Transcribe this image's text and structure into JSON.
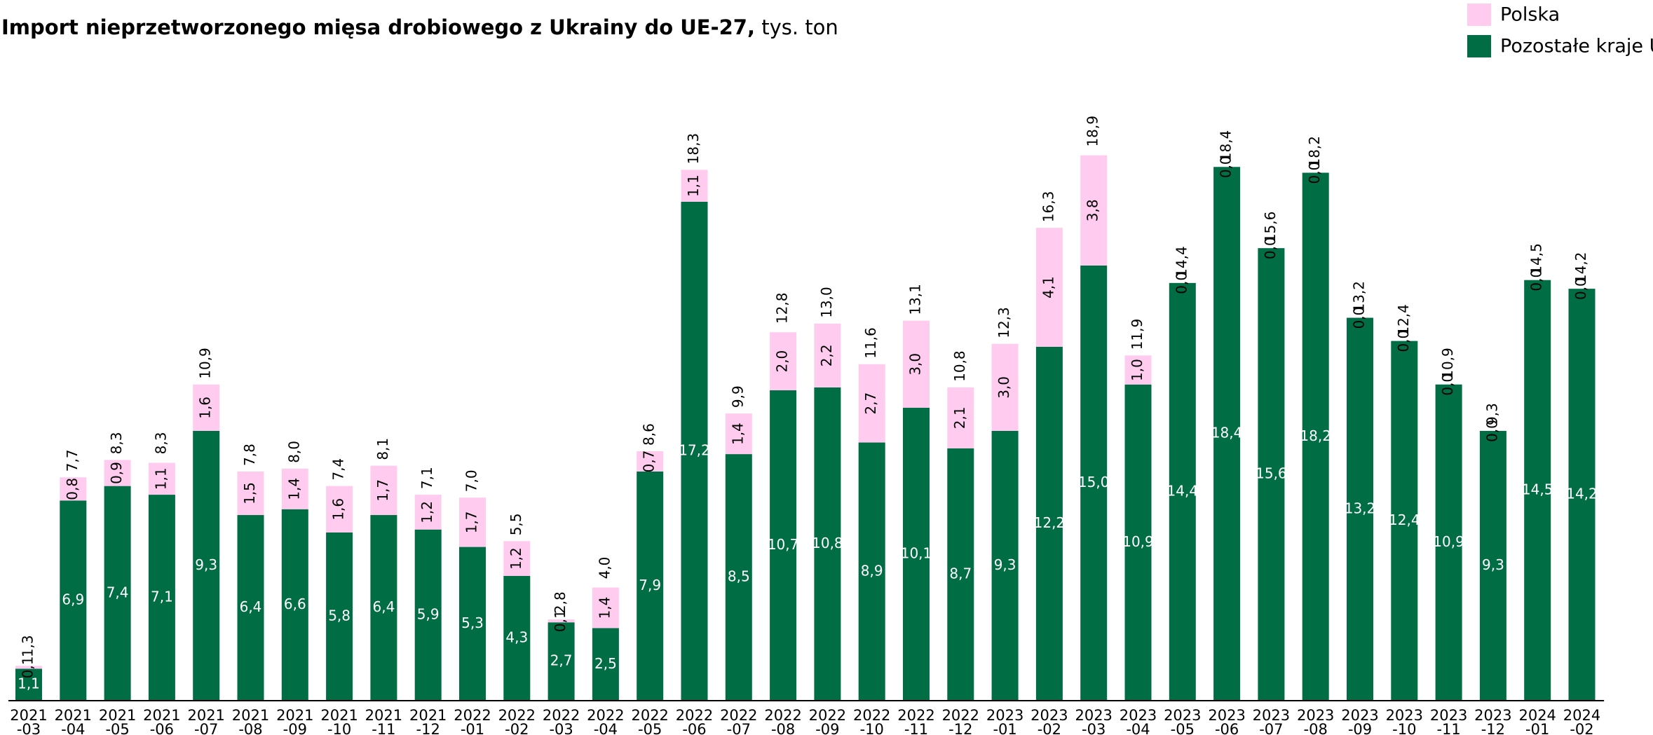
{
  "chart_data": {
    "type": "stacked_bar",
    "title": "Import nieprzetworzonego mięsa drobiowego z Ukrainy do UE-27,",
    "subtitle": " tys. ton",
    "legend": "top-right",
    "ylim": [
      0,
      20
    ],
    "categories": [
      [
        "2021",
        "-03"
      ],
      [
        "2021",
        "-04"
      ],
      [
        "2021",
        "-05"
      ],
      [
        "2021",
        "-06"
      ],
      [
        "2021",
        "-07"
      ],
      [
        "2021",
        "-08"
      ],
      [
        "2021",
        "-09"
      ],
      [
        "2021",
        "-10"
      ],
      [
        "2021",
        "-11"
      ],
      [
        "2021",
        "-12"
      ],
      [
        "2022",
        "-01"
      ],
      [
        "2022",
        "-02"
      ],
      [
        "2022",
        "-03"
      ],
      [
        "2022",
        "-04"
      ],
      [
        "2022",
        "-05"
      ],
      [
        "2022",
        "-06"
      ],
      [
        "2022",
        "-07"
      ],
      [
        "2022",
        "-08"
      ],
      [
        "2022",
        "-09"
      ],
      [
        "2022",
        "-10"
      ],
      [
        "2022",
        "-11"
      ],
      [
        "2022",
        "-12"
      ],
      [
        "2023",
        "-01"
      ],
      [
        "2023",
        "-02"
      ],
      [
        "2023",
        "-03"
      ],
      [
        "2023",
        "-04"
      ],
      [
        "2023",
        "-05"
      ],
      [
        "2023",
        "-06"
      ],
      [
        "2023",
        "-07"
      ],
      [
        "2023",
        "-08"
      ],
      [
        "2023",
        "-09"
      ],
      [
        "2023",
        "-10"
      ],
      [
        "2023",
        "-11"
      ],
      [
        "2023",
        "-12"
      ],
      [
        "2024",
        "-01"
      ],
      [
        "2024",
        "-02"
      ]
    ],
    "series": [
      {
        "name": "Pozostałe kraje UE",
        "color": "#006d44",
        "values": [
          1.1,
          6.9,
          7.4,
          7.1,
          9.3,
          6.4,
          6.6,
          5.8,
          6.4,
          5.9,
          5.3,
          4.3,
          2.7,
          2.5,
          7.9,
          17.2,
          8.5,
          10.7,
          10.8,
          8.9,
          10.1,
          8.7,
          9.3,
          12.2,
          15.0,
          10.9,
          14.4,
          18.4,
          15.6,
          18.2,
          13.2,
          12.4,
          10.9,
          9.3,
          14.5,
          14.2
        ],
        "value_labels": [
          "1,1",
          "6,9",
          "7,4",
          "7,1",
          "9,3",
          "6,4",
          "6,6",
          "5,8",
          "6,4",
          "5,9",
          "5,3",
          "4,3",
          "2,7",
          "2,5",
          "7,9",
          "17,2",
          "8,5",
          "10,7",
          "10,8",
          "8,9",
          "10,1",
          "8,7",
          "9,3",
          "12,2",
          "15,0",
          "10,9",
          "14,4",
          "18,4",
          "15,6",
          "18,2",
          "13,2",
          "12,4",
          "10,9",
          "9,3",
          "14,5",
          "14,2"
        ]
      },
      {
        "name": "Polska",
        "color": "#ffccf0",
        "values": [
          0.1,
          0.8,
          0.9,
          1.1,
          1.6,
          1.5,
          1.4,
          1.6,
          1.7,
          1.2,
          1.7,
          1.2,
          0.1,
          1.4,
          0.7,
          1.1,
          1.4,
          2.0,
          2.2,
          2.7,
          3.0,
          2.1,
          3.0,
          4.1,
          3.8,
          1.0,
          0.0,
          0.0,
          0.0,
          0.0,
          0.0,
          0.0,
          0.0,
          0.0,
          0.0,
          0.0
        ],
        "value_labels": [
          "0,1",
          "0,8",
          "0,9",
          "1,1",
          "1,6",
          "1,5",
          "1,4",
          "1,6",
          "1,7",
          "1,2",
          "1,7",
          "1,2",
          "0,1",
          "1,4",
          "0,7",
          "1,1",
          "1,4",
          "2,0",
          "2,2",
          "2,7",
          "3,0",
          "2,1",
          "3,0",
          "4,1",
          "3,8",
          "1,0",
          "0,0",
          "0,0",
          "0,0",
          "0,0",
          "0,0",
          "0,0",
          "0,0",
          "0,0",
          "0,0",
          "0,0"
        ]
      }
    ],
    "totals": [
      1.3,
      7.7,
      8.3,
      8.3,
      10.9,
      7.8,
      8.0,
      7.4,
      8.1,
      7.1,
      7.0,
      5.5,
      2.8,
      4.0,
      8.6,
      18.3,
      9.9,
      12.8,
      13.0,
      11.6,
      13.1,
      10.8,
      12.3,
      16.3,
      18.9,
      11.9,
      14.4,
      18.4,
      15.6,
      18.2,
      13.2,
      12.4,
      10.9,
      9.3,
      14.5,
      14.2
    ],
    "total_labels": [
      "1,3",
      "7,7",
      "8,3",
      "8,3",
      "10,9",
      "7,8",
      "8,0",
      "7,4",
      "8,1",
      "7,1",
      "7,0",
      "5,5",
      "2,8",
      "4,0",
      "8,6",
      "18,3",
      "9,9",
      "12,8",
      "13,0",
      "11,6",
      "13,1",
      "10,8",
      "12,3",
      "16,3",
      "18,9",
      "11,9",
      "14,4",
      "18,4",
      "15,6",
      "18,2",
      "13,2",
      "12,4",
      "10,9",
      "9,3",
      "14,5",
      "14,2"
    ]
  }
}
